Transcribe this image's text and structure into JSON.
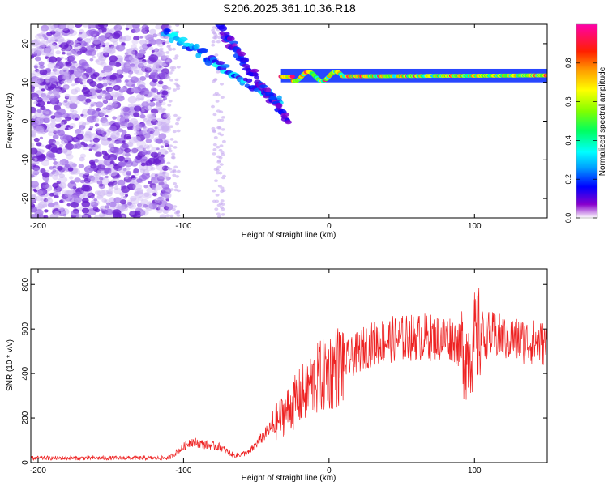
{
  "title": "S206.2025.361.10.36.R18",
  "colors": {
    "snr_line": "#ee2222",
    "axis": "#000000",
    "cloud": "#7733dd"
  },
  "chart_data": [
    {
      "type": "heatmap",
      "title": "S206.2025.361.10.36.R18",
      "xlabel": "Height of straight line (km)",
      "ylabel": "Frequency (Hz)",
      "xlim": [
        -205,
        150
      ],
      "ylim": [
        -25,
        25
      ],
      "xticks": [
        -200,
        -100,
        0,
        100
      ],
      "yticks": [
        -20,
        -10,
        0,
        10,
        20
      ],
      "colorbar": {
        "label": "Normalized spectral amplitude",
        "range": [
          0,
          1
        ],
        "ticks": [
          0.0,
          0.2,
          0.4,
          0.6,
          0.8
        ],
        "tick_labels": [
          "0.0",
          "0.2",
          "0.4",
          "0.6",
          "0.8"
        ]
      },
      "features": {
        "noise_region_x": [
          -205,
          -110
        ],
        "descending_branch_1": {
          "x": [
            -113,
            -33
          ],
          "freq": [
            23,
            5
          ],
          "amplitude": 0.25
        },
        "descending_branch_2": {
          "x": [
            -75,
            -28
          ],
          "freq": [
            24,
            0
          ],
          "amplitude": 0.15
        },
        "carrier_line": {
          "x": [
            -33,
            150
          ],
          "freq": [
            11.5,
            11.8
          ],
          "amplitude_typical": 0.55,
          "amplitude_peak": 0.95
        }
      }
    },
    {
      "type": "line",
      "xlabel": "Height of straight line (km)",
      "ylabel": "SNR (10 * v/v)",
      "xlim": [
        -205,
        150
      ],
      "ylim": [
        0,
        870
      ],
      "xticks": [
        -200,
        -100,
        0,
        100
      ],
      "yticks": [
        0,
        200,
        400,
        600,
        800
      ],
      "series": [
        {
          "name": "SNR",
          "x": [
            -205,
            -110,
            -100,
            -95,
            -85,
            -75,
            -65,
            -55,
            -45,
            -35,
            -25,
            -15,
            -5,
            5,
            15,
            25,
            35,
            45,
            55,
            65,
            75,
            85,
            95,
            100,
            105,
            115,
            125,
            135,
            150
          ],
          "y": [
            20,
            20,
            70,
            95,
            80,
            70,
            30,
            45,
            120,
            190,
            260,
            330,
            390,
            430,
            470,
            520,
            545,
            555,
            560,
            565,
            560,
            560,
            480,
            545,
            580,
            565,
            555,
            545,
            535
          ]
        }
      ]
    }
  ]
}
